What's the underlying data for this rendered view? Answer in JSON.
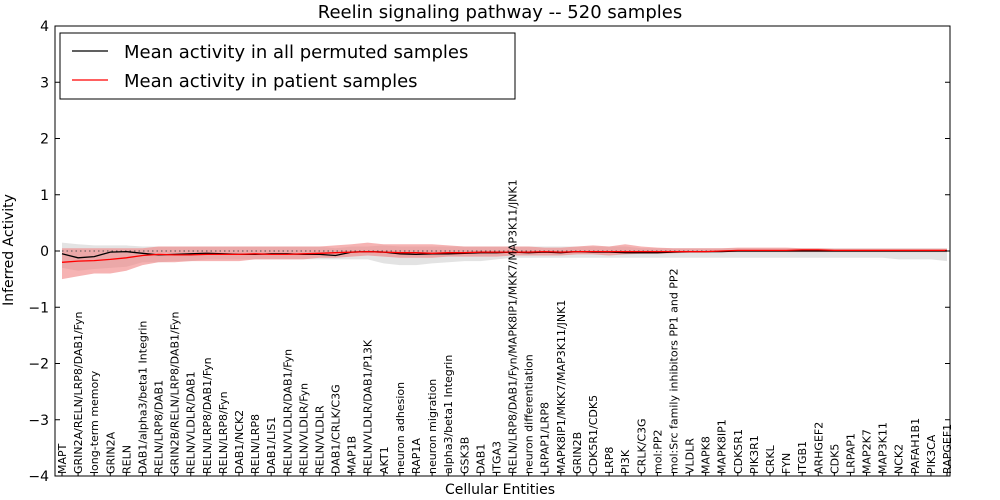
{
  "chart_data": {
    "type": "line",
    "title": "Reelin signaling pathway -- 520 samples",
    "xlabel": "Cellular Entities",
    "ylabel": "Inferred Activity",
    "ylim": [
      -4,
      4
    ],
    "yticks": [
      -4,
      -3,
      -2,
      -1,
      0,
      1,
      2,
      3,
      4
    ],
    "grid": false,
    "legend_position": "top-left",
    "colors": {
      "permuted": "#000000",
      "patient": "#ff0000",
      "permuted_band": "#cccccc",
      "patient_band": "#f08080"
    },
    "categories": [
      "MAPT",
      "GRIN2A/RELN/LRP8/DAB1/Fyn",
      "long-term memory",
      "GRIN2A",
      "RELN",
      "DAB1/alpha3/beta1 Integrin",
      "RELN/LRP8/DAB1",
      "GRIN2B/RELN/LRP8/DAB1/Fyn",
      "RELN/VLDLR/DAB1",
      "RELN/LRP8/DAB1/Fyn",
      "RELN/LRP8/Fyn",
      "DAB1/NCK2",
      "RELN/LRP8",
      "DAB1/LIS1",
      "RELN/VLDLR/DAB1/Fyn",
      "RELN/VLDLR/Fyn",
      "RELN/VLDLR",
      "DAB1/CRLK/C3G",
      "MAP1B",
      "RELN/VLDLR/DAB1/P13K",
      "AKT1",
      "neuron adhesion",
      "RAP1A",
      "neuron migration",
      "alpha3/beta1 Integrin",
      "GSK3B",
      "DAB1",
      "ITGA3",
      "RELN/LRP8/DAB1/Fyn/MAPK8IP1/MKK7/MAP3K11/JNK1",
      "neuron differentiation",
      "LRPAP1/LRP8",
      "MAPK8IP1/MKK7/MAP3K11/JNK1",
      "GRIN2B",
      "CDK5R1/CDK5",
      "LRP8",
      "PI3K",
      "CRLK/C3G",
      "mol:PP2",
      "mol:Src family inhibitors PP1 and PP2",
      "VLDLR",
      "MAPK8",
      "MAPK8IP1",
      "CDK5R1",
      "PIK3R1",
      "CRKL",
      "FYN",
      "ITGB1",
      "ARHGEF2",
      "CDK5",
      "LRPAP1",
      "MAP2K7",
      "MAP3K11",
      "NCK2",
      "PAFAH1B1",
      "PIK3CA",
      "RAPGEF1"
    ],
    "series": [
      {
        "name": "Mean activity in all permuted samples",
        "values": [
          -0.05,
          -0.12,
          -0.1,
          -0.02,
          -0.01,
          -0.04,
          -0.07,
          -0.06,
          -0.05,
          -0.04,
          -0.05,
          -0.06,
          -0.06,
          -0.05,
          -0.05,
          -0.06,
          -0.06,
          -0.08,
          -0.02,
          -0.01,
          -0.02,
          -0.05,
          -0.06,
          -0.05,
          -0.05,
          -0.04,
          -0.03,
          -0.03,
          -0.02,
          -0.03,
          -0.02,
          -0.03,
          -0.01,
          -0.02,
          -0.02,
          -0.03,
          -0.03,
          -0.03,
          -0.02,
          -0.01,
          -0.01,
          -0.01,
          0.0,
          0.0,
          0.0,
          0.0,
          0.0,
          0.0,
          0.0,
          0.0,
          0.0,
          0.0,
          0.0,
          0.0,
          0.0,
          0.0
        ],
        "lower": [
          -0.3,
          -0.35,
          -0.32,
          -0.3,
          -0.28,
          -0.2,
          -0.2,
          -0.18,
          -0.18,
          -0.15,
          -0.15,
          -0.15,
          -0.15,
          -0.15,
          -0.15,
          -0.15,
          -0.15,
          -0.15,
          -0.15,
          -0.15,
          -0.22,
          -0.25,
          -0.25,
          -0.22,
          -0.2,
          -0.18,
          -0.18,
          -0.15,
          -0.12,
          -0.12,
          -0.12,
          -0.12,
          -0.12,
          -0.12,
          -0.12,
          -0.12,
          -0.12,
          -0.12,
          -0.12,
          -0.12,
          -0.12,
          -0.12,
          -0.12,
          -0.12,
          -0.12,
          -0.12,
          -0.12,
          -0.12,
          -0.12,
          -0.12,
          -0.12,
          -0.12,
          -0.15,
          -0.15,
          -0.15,
          -0.18
        ],
        "upper": [
          0.15,
          0.12,
          0.1,
          0.1,
          0.1,
          0.08,
          0.08,
          0.08,
          0.08,
          0.08,
          0.08,
          0.08,
          0.08,
          0.08,
          0.08,
          0.08,
          0.08,
          0.05,
          0.08,
          0.08,
          0.1,
          0.08,
          0.08,
          0.08,
          0.08,
          0.08,
          0.08,
          0.08,
          0.08,
          0.08,
          0.08,
          0.08,
          0.08,
          0.08,
          0.08,
          0.08,
          0.05,
          0.05,
          0.05,
          0.05,
          0.05,
          0.05,
          0.05,
          0.05,
          0.05,
          0.05,
          0.05,
          0.05,
          0.05,
          0.05,
          0.05,
          0.05,
          0.05,
          0.05,
          0.05,
          0.05
        ]
      },
      {
        "name": "Mean activity in patient samples",
        "values": [
          -0.2,
          -0.18,
          -0.17,
          -0.15,
          -0.12,
          -0.08,
          -0.06,
          -0.07,
          -0.07,
          -0.06,
          -0.06,
          -0.06,
          -0.05,
          -0.06,
          -0.06,
          -0.05,
          -0.04,
          -0.03,
          -0.02,
          -0.01,
          -0.02,
          -0.03,
          -0.03,
          -0.04,
          -0.03,
          -0.03,
          -0.02,
          -0.02,
          -0.02,
          -0.02,
          -0.01,
          -0.02,
          -0.01,
          -0.01,
          -0.01,
          -0.01,
          -0.01,
          -0.01,
          -0.01,
          -0.01,
          -0.01,
          0.0,
          0.01,
          0.01,
          0.01,
          0.01,
          0.02,
          0.02,
          0.01,
          0.01,
          0.01,
          0.01,
          0.01,
          0.01,
          0.01,
          0.01
        ],
        "lower": [
          -0.5,
          -0.45,
          -0.4,
          -0.4,
          -0.35,
          -0.25,
          -0.2,
          -0.2,
          -0.18,
          -0.18,
          -0.18,
          -0.18,
          -0.15,
          -0.15,
          -0.15,
          -0.15,
          -0.12,
          -0.12,
          -0.1,
          -0.08,
          -0.1,
          -0.12,
          -0.12,
          -0.12,
          -0.1,
          -0.1,
          -0.1,
          -0.1,
          -0.08,
          -0.08,
          -0.08,
          -0.08,
          -0.06,
          -0.06,
          -0.08,
          -0.06,
          -0.05,
          -0.05,
          -0.04,
          -0.03,
          -0.03,
          -0.02,
          -0.02,
          -0.02,
          -0.02,
          -0.02,
          -0.02,
          -0.02,
          -0.02,
          -0.02,
          -0.02,
          -0.02,
          -0.02,
          -0.02,
          -0.02,
          -0.02
        ],
        "upper": [
          0.05,
          0.05,
          0.05,
          0.05,
          0.05,
          0.05,
          0.08,
          0.08,
          0.08,
          0.08,
          0.08,
          0.08,
          0.08,
          0.08,
          0.08,
          0.08,
          0.08,
          0.1,
          0.12,
          0.15,
          0.12,
          0.12,
          0.12,
          0.12,
          0.1,
          0.08,
          0.08,
          0.08,
          0.08,
          0.08,
          0.06,
          0.06,
          0.08,
          0.1,
          0.08,
          0.12,
          0.08,
          0.06,
          0.05,
          0.05,
          0.05,
          0.05,
          0.06,
          0.06,
          0.06,
          0.06,
          0.05,
          0.05,
          0.04,
          0.04,
          0.04,
          0.04,
          0.04,
          0.04,
          0.04,
          0.04
        ]
      }
    ]
  }
}
